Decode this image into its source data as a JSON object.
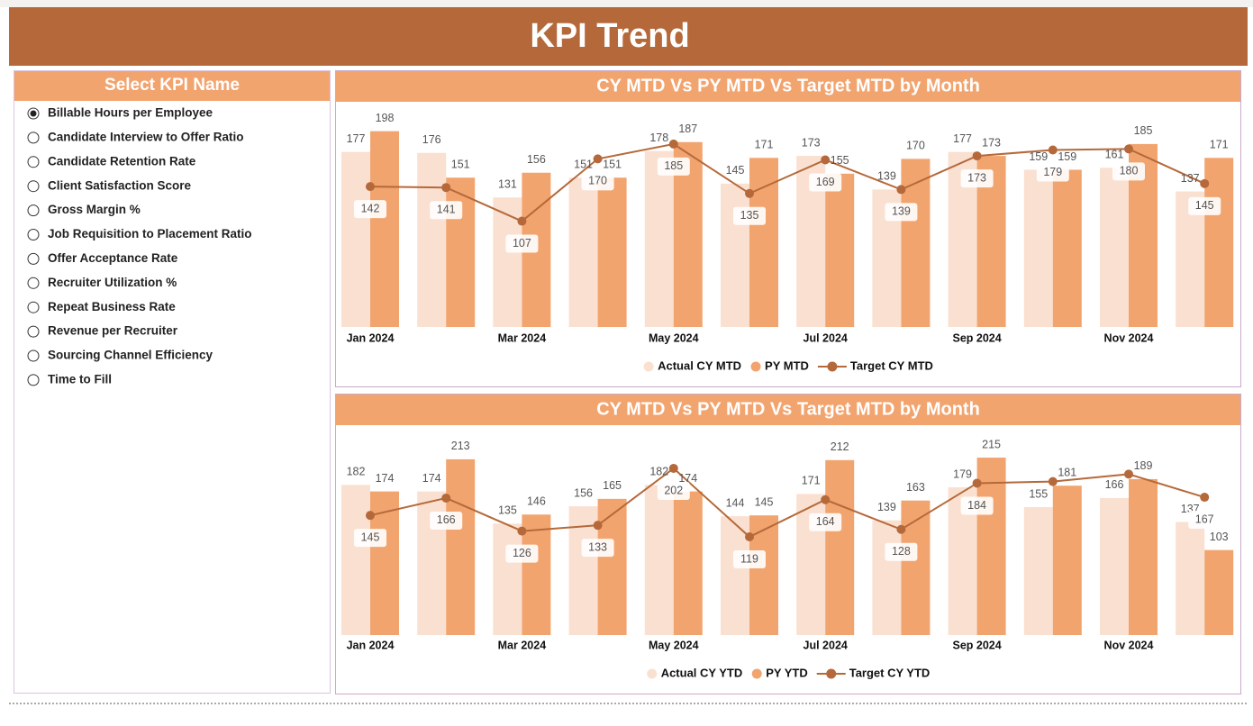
{
  "header": {
    "title": "KPI Trend"
  },
  "slicer": {
    "title": "Select KPI Name",
    "selected": 0,
    "items": [
      "Billable Hours per Employee",
      "Candidate Interview to Offer Ratio",
      "Candidate Retention Rate",
      "Client Satisfaction Score",
      "Gross Margin %",
      "Job Requisition to Placement Ratio",
      "Offer Acceptance Rate",
      "Recruiter Utilization %",
      "Repeat Business Rate",
      "Revenue per Recruiter",
      "Sourcing Channel Efficiency",
      "Time to Fill"
    ]
  },
  "chart_data": [
    {
      "type": "combo",
      "title": "CY MTD Vs PY MTD Vs Target MTD by Month",
      "categories": [
        "Jan 2024",
        null,
        "Mar 2024",
        null,
        "May 2024",
        null,
        "Jul 2024",
        null,
        "Sep 2024",
        null,
        "Nov 2024",
        null
      ],
      "ylim": [
        0,
        225
      ],
      "series": [
        {
          "name": "Actual CY MTD",
          "type": "bar",
          "color": "#fae0d0",
          "values": [
            177,
            176,
            131,
            151,
            178,
            145,
            173,
            139,
            177,
            159,
            161,
            137
          ]
        },
        {
          "name": "PY MTD",
          "type": "bar",
          "color": "#f2a46f",
          "values": [
            198,
            151,
            156,
            151,
            187,
            171,
            155,
            170,
            173,
            159,
            185,
            171
          ]
        },
        {
          "name": "Target CY MTD",
          "type": "line",
          "color": "#b5693a",
          "values": [
            142,
            141,
            107,
            170,
            185,
            135,
            169,
            139,
            173,
            179,
            180,
            145
          ]
        }
      ]
    },
    {
      "type": "combo",
      "title": "CY MTD Vs PY MTD Vs Target MTD by Month",
      "categories": [
        "Jan 2024",
        null,
        "Mar 2024",
        null,
        "May 2024",
        null,
        "Jul 2024",
        null,
        "Sep 2024",
        null,
        "Nov 2024",
        null
      ],
      "ylim": [
        0,
        250
      ],
      "series": [
        {
          "name": "Actual CY YTD",
          "type": "bar",
          "color": "#fae0d0",
          "values": [
            182,
            174,
            135,
            156,
            182,
            144,
            171,
            139,
            179,
            155,
            166,
            137
          ]
        },
        {
          "name": "PY YTD",
          "type": "bar",
          "color": "#f2a46f",
          "values": [
            174,
            213,
            146,
            165,
            174,
            145,
            212,
            163,
            215,
            181,
            189,
            103
          ]
        },
        {
          "name": "Target CY YTD",
          "type": "line",
          "color": "#b5693a",
          "values": [
            145,
            166,
            126,
            133,
            202,
            119,
            164,
            128,
            184,
            186,
            195,
            167
          ],
          "value_labels": [
            "145",
            "166",
            "126",
            "133",
            "202",
            "119",
            "164",
            "128",
            "184",
            null,
            null,
            "167"
          ]
        }
      ]
    }
  ]
}
